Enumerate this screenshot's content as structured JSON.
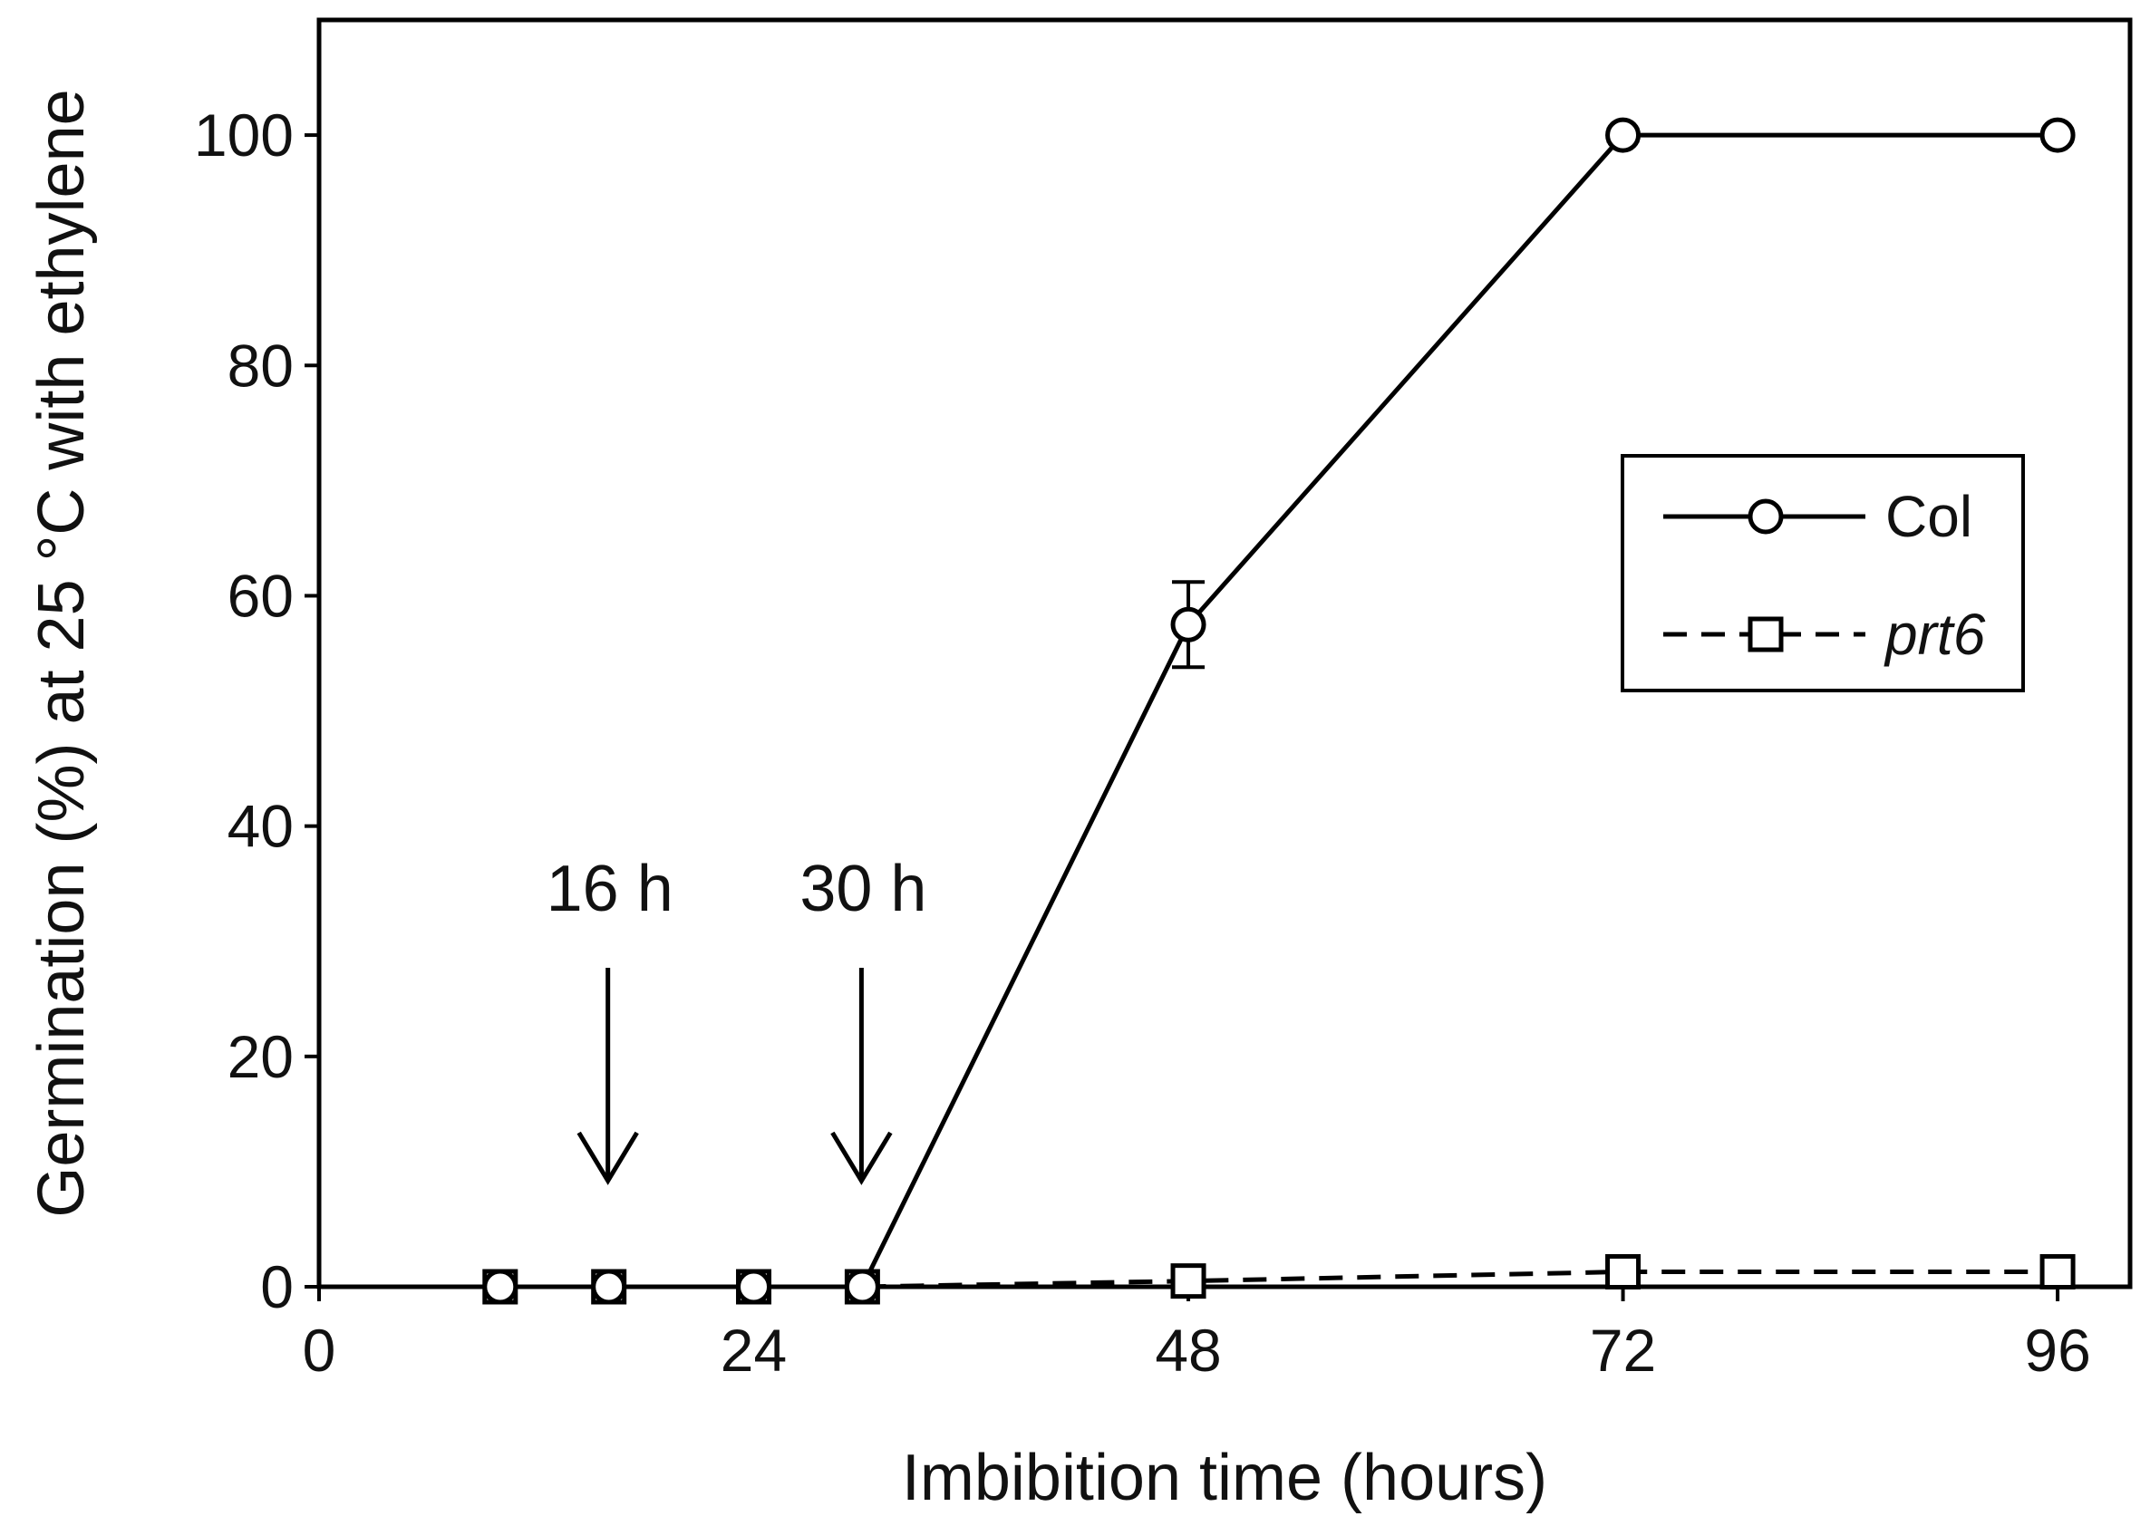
{
  "chart_data": {
    "type": "line",
    "title": "",
    "xlabel": "Imbibition time (hours)",
    "ylabel": "Germination (%) at 25 °C with ethylene",
    "xlim": [
      0,
      96
    ],
    "ylim": [
      0,
      100
    ],
    "ymax_plot": 110,
    "xticks": [
      0,
      24,
      48,
      72,
      96
    ],
    "xtick_labels": [
      "0",
      "24",
      "48",
      "72",
      "96"
    ],
    "yticks": [
      0,
      20,
      40,
      60,
      80,
      100
    ],
    "ytick_labels": [
      "0",
      "20",
      "40",
      "60",
      "80",
      "100"
    ],
    "grid": false,
    "legend_position": "right",
    "series": [
      {
        "name": "Col",
        "line_style": "solid",
        "marker": "circle",
        "x": [
          10,
          16,
          24,
          30,
          48,
          72,
          96
        ],
        "y": [
          0,
          0,
          0,
          0,
          57.5,
          100,
          100
        ],
        "yerr": [
          0,
          0,
          0,
          0,
          3.7,
          0.5,
          0.5
        ]
      },
      {
        "name": "prt6",
        "line_style": "dashed",
        "marker": "square",
        "x": [
          10,
          16,
          24,
          30,
          48,
          72,
          96
        ],
        "y": [
          0,
          0,
          0,
          0,
          0.5,
          1.3,
          1.3
        ],
        "yerr": [
          0,
          0,
          0,
          0,
          0.5,
          0.5,
          0.5
        ]
      }
    ],
    "annotations": [
      {
        "text": "16 h",
        "x": 16,
        "arrow": "down"
      },
      {
        "text": "30 h",
        "x": 30,
        "arrow": "down"
      }
    ],
    "colors": {
      "line": "#000000",
      "text": "#111111",
      "background": "#ffffff"
    }
  }
}
